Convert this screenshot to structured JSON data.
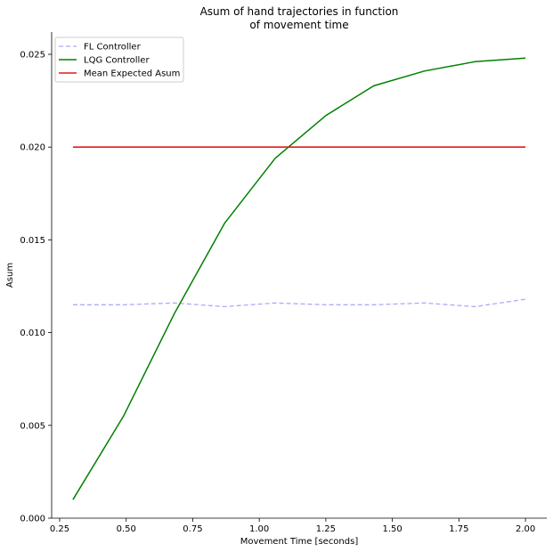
{
  "chart_data": {
    "type": "line",
    "title_lines": [
      "Asum of hand trajectories in function",
      "of movement time"
    ],
    "xlabel": "Movement Time [seconds]",
    "ylabel": "Asum",
    "xlim": [
      0.22,
      2.08
    ],
    "ylim": [
      0.0,
      0.0262
    ],
    "xticks": [
      0.25,
      0.5,
      0.75,
      1.0,
      1.25,
      1.5,
      1.75,
      2.0
    ],
    "xtick_labels": [
      "0.25",
      "0.50",
      "0.75",
      "1.00",
      "1.25",
      "1.50",
      "1.75",
      "2.00"
    ],
    "yticks": [
      0.0,
      0.005,
      0.01,
      0.015,
      0.02,
      0.025
    ],
    "ytick_labels": [
      "0.000",
      "0.005",
      "0.010",
      "0.015",
      "0.020",
      "0.025"
    ],
    "grid": false,
    "legend_position": "top-left",
    "x": [
      0.3,
      0.49,
      0.68,
      0.87,
      1.06,
      1.25,
      1.43,
      1.62,
      1.81,
      2.0
    ],
    "series": [
      {
        "name": "FL Controller",
        "color": "#aaaaff",
        "style": "dashed",
        "values": [
          0.0115,
          0.0115,
          0.0116,
          0.0114,
          0.0116,
          0.0115,
          0.0115,
          0.0116,
          0.0114,
          0.0118
        ]
      },
      {
        "name": "LQG Controller",
        "color": "#008000",
        "style": "solid",
        "values": [
          0.001,
          0.0055,
          0.011,
          0.0159,
          0.0194,
          0.0217,
          0.0233,
          0.0241,
          0.0246,
          0.0248
        ]
      },
      {
        "name": "Mean Expected Asum",
        "color": "#e31a1c",
        "style": "solid",
        "values": [
          0.02,
          0.02,
          0.02,
          0.02,
          0.02,
          0.02,
          0.02,
          0.02,
          0.02,
          0.02
        ]
      }
    ]
  }
}
